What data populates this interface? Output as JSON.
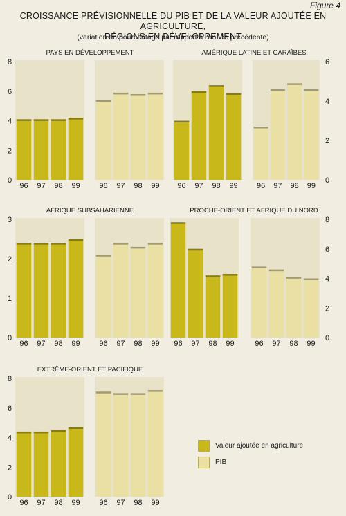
{
  "figure_label": "Figure 4",
  "title_line1": "CROISSANCE PRÉVISIONNELLE DU PIB ET DE LA VALEUR AJOUTÉE EN AGRICULTURE,",
  "title_line2": "RÉGIONS EN DÉVELOPPEMENT",
  "subtitle": "(variation en pourcentage par rapport à l'année précédente)",
  "legend": {
    "agri_label": "Valeur ajoutée en agriculture",
    "pib_label": "PIB"
  },
  "colors": {
    "agri": "#c8b81a",
    "agri_top": "#8a7d10",
    "pib": "#ebe0a4",
    "pib_top": "#a29a70",
    "panel": "#e8e2c8"
  },
  "chart_data": [
    {
      "type": "bar",
      "title": "PAYS EN DÉVELOPPEMENT",
      "categories": [
        "96",
        "97",
        "98",
        "99"
      ],
      "series": [
        {
          "name": "Valeur ajoutée en agriculture",
          "values": [
            4.1,
            4.1,
            4.1,
            4.2
          ]
        },
        {
          "name": "PIB",
          "values": [
            5.4,
            5.9,
            5.8,
            5.9
          ]
        }
      ],
      "yticks": [
        "0",
        "2",
        "4",
        "6",
        "8"
      ],
      "ylim": [
        0,
        8
      ],
      "axis_side": "left"
    },
    {
      "type": "bar",
      "title": "AMÉRIQUE LATINE ET CARAÏBES",
      "categories": [
        "96",
        "97",
        "98",
        "99"
      ],
      "series": [
        {
          "name": "Valeur ajoutée en agriculture",
          "values": [
            3.0,
            4.5,
            4.8,
            4.4
          ]
        },
        {
          "name": "PIB",
          "values": [
            2.7,
            4.6,
            4.9,
            4.6
          ]
        }
      ],
      "yticks": [
        "0",
        "2",
        "4",
        "6"
      ],
      "ylim": [
        0,
        6
      ],
      "axis_side": "right"
    },
    {
      "type": "bar",
      "title": "AFRIQUE SUBSAHARIENNE",
      "categories": [
        "96",
        "97",
        "98",
        "99"
      ],
      "series": [
        {
          "name": "Valeur ajoutée en agriculture",
          "values": [
            2.4,
            2.4,
            2.4,
            2.5
          ]
        },
        {
          "name": "PIB",
          "values": [
            2.1,
            2.4,
            2.3,
            2.4
          ]
        }
      ],
      "yticks": [
        "0",
        "1",
        "2",
        "3"
      ],
      "ylim": [
        0,
        3
      ],
      "axis_side": "left"
    },
    {
      "type": "bar",
      "title": "PROCHE-ORIENT ET AFRIQUE DU NORD",
      "categories": [
        "96",
        "97",
        "98",
        "99"
      ],
      "series": [
        {
          "name": "Valeur ajoutée en agriculture",
          "values": [
            7.8,
            6.0,
            4.2,
            4.3
          ]
        },
        {
          "name": "PIB",
          "values": [
            4.8,
            4.6,
            4.1,
            4.0
          ]
        }
      ],
      "yticks": [
        "0",
        "2",
        "4",
        "6",
        "8"
      ],
      "ylim": [
        0,
        8
      ],
      "axis_side": "right"
    },
    {
      "type": "bar",
      "title": "EXTRÊME-ORIENT ET PACIFIQUE",
      "categories": [
        "96",
        "97",
        "98",
        "99"
      ],
      "series": [
        {
          "name": "Valeur ajoutée en agriculture",
          "values": [
            4.4,
            4.4,
            4.5,
            4.7
          ]
        },
        {
          "name": "PIB",
          "values": [
            7.1,
            7.0,
            7.0,
            7.2
          ]
        }
      ],
      "yticks": [
        "0",
        "2",
        "4",
        "6",
        "8"
      ],
      "ylim": [
        0,
        8
      ],
      "axis_side": "left"
    }
  ]
}
